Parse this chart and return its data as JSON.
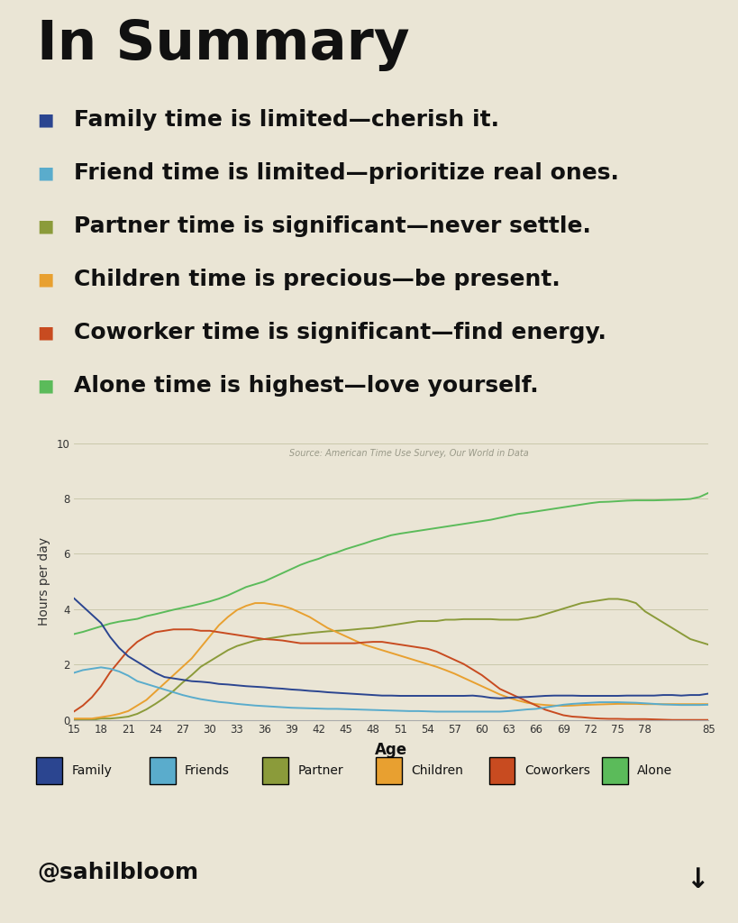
{
  "title": "In Summary",
  "background_color": "#EAE5D5",
  "bullet_points": [
    {
      "color": "#2B4590",
      "text": "Family time is limited—cherish it."
    },
    {
      "color": "#5AACCC",
      "text": "Friend time is limited—prioritize real ones."
    },
    {
      "color": "#8B9B3A",
      "text": "Partner time is significant—never settle."
    },
    {
      "color": "#E8A030",
      "text": "Children time is precious—be present."
    },
    {
      "color": "#C84B20",
      "text": "Coworker time is significant—find energy."
    },
    {
      "color": "#5BBB5A",
      "text": "Alone time is highest—love yourself."
    }
  ],
  "source_text": "Source: American Time Use Survey, Our World in Data",
  "xlabel": "Age",
  "ylabel": "Hours per day",
  "x_ticks": [
    15,
    18,
    21,
    24,
    27,
    30,
    33,
    36,
    39,
    42,
    45,
    48,
    51,
    54,
    57,
    60,
    63,
    66,
    69,
    72,
    75,
    78,
    85
  ],
  "ylim": [
    0,
    10
  ],
  "yticks": [
    0,
    2,
    4,
    6,
    8,
    10
  ],
  "footer_text": "@sahilbloom",
  "legend_items": [
    {
      "label": "Family",
      "color": "#2B4590"
    },
    {
      "label": "Friends",
      "color": "#5AACCC"
    },
    {
      "label": "Partner",
      "color": "#8B9B3A"
    },
    {
      "label": "Children",
      "color": "#E8A030"
    },
    {
      "label": "Coworkers",
      "color": "#C84B20"
    },
    {
      "label": "Alone",
      "color": "#5BBB5A"
    }
  ],
  "series": {
    "ages": [
      15,
      16,
      17,
      18,
      19,
      20,
      21,
      22,
      23,
      24,
      25,
      26,
      27,
      28,
      29,
      30,
      31,
      32,
      33,
      34,
      35,
      36,
      37,
      38,
      39,
      40,
      41,
      42,
      43,
      44,
      45,
      46,
      47,
      48,
      49,
      50,
      51,
      52,
      53,
      54,
      55,
      56,
      57,
      58,
      59,
      60,
      61,
      62,
      63,
      64,
      65,
      66,
      67,
      68,
      69,
      70,
      71,
      72,
      73,
      74,
      75,
      76,
      77,
      78,
      79,
      80,
      81,
      82,
      83,
      84,
      85
    ],
    "family": [
      4.4,
      4.1,
      3.8,
      3.5,
      3.0,
      2.6,
      2.3,
      2.1,
      1.9,
      1.7,
      1.55,
      1.5,
      1.45,
      1.4,
      1.38,
      1.35,
      1.3,
      1.28,
      1.25,
      1.22,
      1.2,
      1.18,
      1.15,
      1.13,
      1.1,
      1.08,
      1.05,
      1.03,
      1.0,
      0.98,
      0.96,
      0.94,
      0.92,
      0.9,
      0.88,
      0.88,
      0.87,
      0.87,
      0.87,
      0.87,
      0.87,
      0.87,
      0.87,
      0.87,
      0.88,
      0.85,
      0.8,
      0.78,
      0.8,
      0.82,
      0.83,
      0.85,
      0.87,
      0.88,
      0.88,
      0.88,
      0.87,
      0.87,
      0.87,
      0.87,
      0.87,
      0.88,
      0.88,
      0.88,
      0.88,
      0.9,
      0.9,
      0.88,
      0.9,
      0.9,
      0.95
    ],
    "friends": [
      1.7,
      1.8,
      1.85,
      1.9,
      1.85,
      1.75,
      1.6,
      1.4,
      1.3,
      1.2,
      1.1,
      1.0,
      0.9,
      0.82,
      0.75,
      0.7,
      0.65,
      0.62,
      0.58,
      0.55,
      0.52,
      0.5,
      0.48,
      0.46,
      0.44,
      0.43,
      0.42,
      0.41,
      0.4,
      0.4,
      0.39,
      0.38,
      0.37,
      0.36,
      0.35,
      0.34,
      0.33,
      0.32,
      0.32,
      0.31,
      0.3,
      0.3,
      0.3,
      0.3,
      0.3,
      0.3,
      0.3,
      0.3,
      0.32,
      0.35,
      0.38,
      0.4,
      0.45,
      0.5,
      0.55,
      0.58,
      0.6,
      0.62,
      0.64,
      0.64,
      0.64,
      0.63,
      0.62,
      0.6,
      0.58,
      0.56,
      0.55,
      0.54,
      0.54,
      0.54,
      0.55
    ],
    "partner": [
      0.0,
      0.0,
      0.0,
      0.05,
      0.05,
      0.08,
      0.12,
      0.22,
      0.38,
      0.58,
      0.8,
      1.05,
      1.35,
      1.62,
      1.92,
      2.12,
      2.32,
      2.52,
      2.67,
      2.77,
      2.87,
      2.92,
      2.97,
      3.02,
      3.07,
      3.1,
      3.14,
      3.17,
      3.2,
      3.22,
      3.24,
      3.27,
      3.3,
      3.32,
      3.37,
      3.42,
      3.47,
      3.52,
      3.57,
      3.57,
      3.57,
      3.62,
      3.62,
      3.64,
      3.64,
      3.64,
      3.64,
      3.62,
      3.62,
      3.62,
      3.67,
      3.72,
      3.82,
      3.92,
      4.02,
      4.12,
      4.22,
      4.27,
      4.32,
      4.37,
      4.37,
      4.32,
      4.22,
      3.92,
      3.72,
      3.52,
      3.32,
      3.12,
      2.92,
      2.82,
      2.72
    ],
    "children": [
      0.05,
      0.05,
      0.05,
      0.1,
      0.15,
      0.22,
      0.32,
      0.52,
      0.72,
      1.02,
      1.32,
      1.62,
      1.92,
      2.22,
      2.62,
      3.02,
      3.42,
      3.72,
      3.97,
      4.12,
      4.22,
      4.22,
      4.17,
      4.12,
      4.02,
      3.87,
      3.72,
      3.52,
      3.32,
      3.17,
      3.02,
      2.87,
      2.72,
      2.62,
      2.52,
      2.42,
      2.32,
      2.22,
      2.12,
      2.02,
      1.92,
      1.8,
      1.67,
      1.52,
      1.37,
      1.22,
      1.07,
      0.92,
      0.8,
      0.7,
      0.62,
      0.57,
      0.54,
      0.52,
      0.51,
      0.52,
      0.54,
      0.55,
      0.56,
      0.57,
      0.58,
      0.58,
      0.58,
      0.57,
      0.57,
      0.57,
      0.57,
      0.57,
      0.57,
      0.57,
      0.57
    ],
    "coworkers": [
      0.3,
      0.52,
      0.82,
      1.22,
      1.72,
      2.12,
      2.52,
      2.82,
      3.02,
      3.17,
      3.22,
      3.27,
      3.27,
      3.27,
      3.22,
      3.22,
      3.17,
      3.12,
      3.07,
      3.02,
      2.97,
      2.92,
      2.9,
      2.87,
      2.82,
      2.77,
      2.77,
      2.77,
      2.77,
      2.77,
      2.77,
      2.77,
      2.8,
      2.82,
      2.82,
      2.77,
      2.72,
      2.67,
      2.62,
      2.57,
      2.47,
      2.32,
      2.17,
      2.02,
      1.82,
      1.62,
      1.37,
      1.12,
      0.97,
      0.82,
      0.67,
      0.52,
      0.37,
      0.27,
      0.17,
      0.12,
      0.1,
      0.07,
      0.05,
      0.04,
      0.04,
      0.03,
      0.03,
      0.03,
      0.02,
      0.01,
      0.0,
      0.0,
      0.0,
      0.0,
      0.0
    ],
    "alone": [
      3.1,
      3.18,
      3.28,
      3.38,
      3.48,
      3.55,
      3.6,
      3.65,
      3.75,
      3.82,
      3.9,
      3.98,
      4.05,
      4.12,
      4.2,
      4.28,
      4.38,
      4.5,
      4.65,
      4.8,
      4.9,
      5.0,
      5.15,
      5.3,
      5.45,
      5.6,
      5.72,
      5.82,
      5.95,
      6.05,
      6.17,
      6.27,
      6.37,
      6.48,
      6.57,
      6.67,
      6.73,
      6.78,
      6.83,
      6.88,
      6.93,
      6.98,
      7.03,
      7.08,
      7.13,
      7.18,
      7.23,
      7.3,
      7.37,
      7.44,
      7.48,
      7.53,
      7.58,
      7.63,
      7.68,
      7.73,
      7.78,
      7.83,
      7.87,
      7.88,
      7.9,
      7.92,
      7.93,
      7.93,
      7.93,
      7.94,
      7.95,
      7.96,
      7.98,
      8.05,
      8.2
    ]
  }
}
